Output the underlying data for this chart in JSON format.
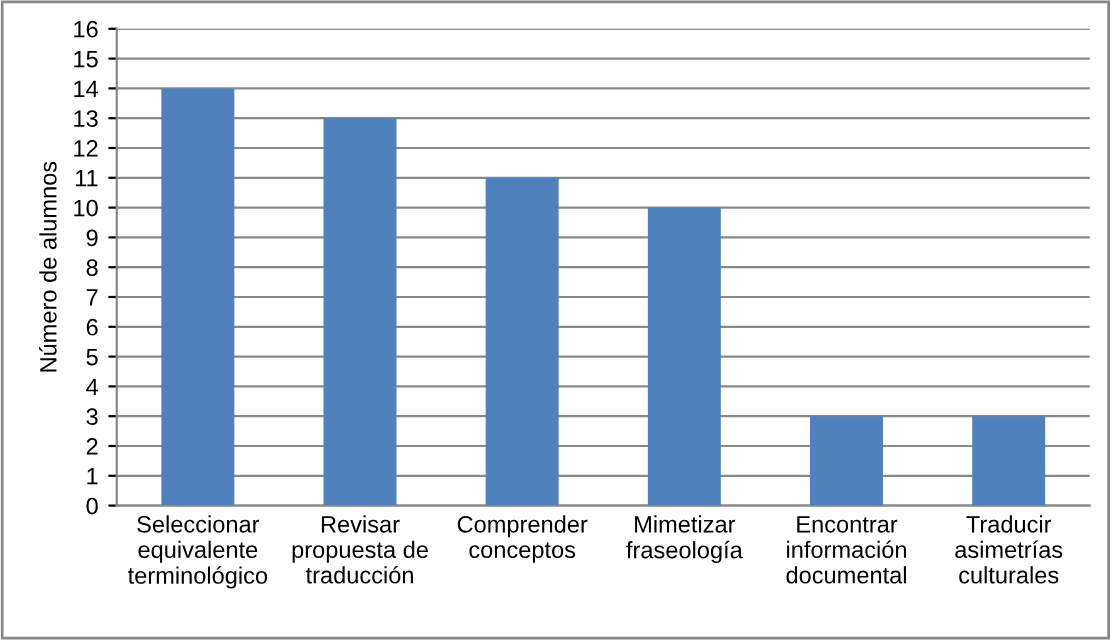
{
  "chart_data": {
    "type": "bar",
    "ylabel": "Número de alumnos",
    "categories": [
      "Seleccionar\nequivalente\nterminológico",
      "Revisar\npropuesta de\ntraducción",
      "Comprender\nconceptos",
      "Mimetizar\nfraseología",
      "Encontrar\ninformación\ndocumental",
      "Traducir\nasimetrías\nculturales"
    ],
    "values": [
      14,
      13,
      11,
      10,
      3,
      3
    ],
    "color": "#4f81bd",
    "ylim": [
      0,
      16
    ],
    "yticks": [
      0,
      1,
      2,
      3,
      4,
      5,
      6,
      7,
      8,
      9,
      10,
      11,
      12,
      13,
      14,
      15,
      16
    ],
    "grid": "y"
  }
}
